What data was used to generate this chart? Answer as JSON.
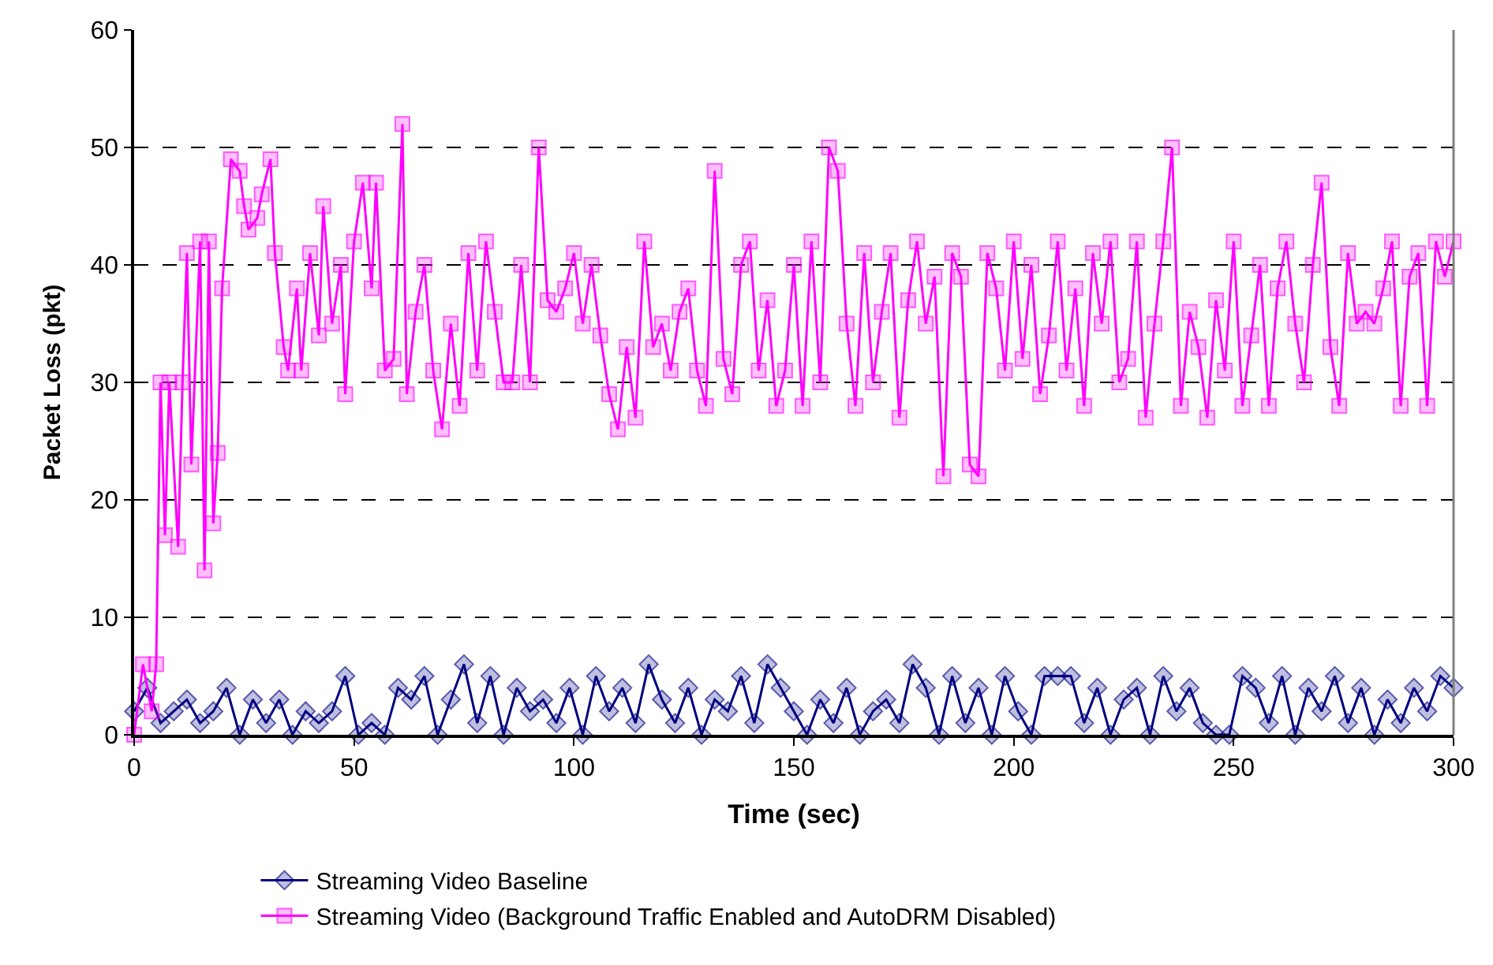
{
  "chart_data": {
    "type": "line",
    "xlabel": "Time (sec)",
    "ylabel": "Packet Loss (pkt)",
    "xlim": [
      0,
      300
    ],
    "xticks": [
      0,
      50,
      100,
      150,
      200,
      250,
      300
    ],
    "ylim": [
      0,
      60
    ],
    "yticks": [
      0,
      10,
      20,
      30,
      40,
      50,
      60
    ],
    "grid": "y",
    "legend": "bottom",
    "line_style": "solid",
    "series": [
      {
        "name": "Streaming Video Baseline",
        "color": "#000080",
        "marker": "diamond",
        "x": [
          0,
          3,
          6,
          9,
          12,
          15,
          18,
          21,
          24,
          27,
          30,
          33,
          36,
          39,
          42,
          45,
          48,
          51,
          54,
          57,
          60,
          63,
          66,
          69,
          72,
          75,
          78,
          81,
          84,
          87,
          90,
          93,
          96,
          99,
          102,
          105,
          108,
          111,
          114,
          117,
          120,
          123,
          126,
          129,
          132,
          135,
          138,
          141,
          144,
          147,
          150,
          153,
          156,
          159,
          162,
          165,
          168,
          171,
          174,
          177,
          180,
          183,
          186,
          189,
          192,
          195,
          198,
          201,
          204,
          207,
          210,
          213,
          216,
          219,
          222,
          225,
          228,
          231,
          234,
          237,
          240,
          243,
          246,
          249,
          252,
          255,
          258,
          261,
          264,
          267,
          270,
          273,
          276,
          279,
          282,
          285,
          288,
          291,
          294,
          297,
          300
        ],
        "values": [
          2,
          4,
          1,
          2,
          3,
          1,
          2,
          4,
          0,
          3,
          1,
          3,
          0,
          2,
          1,
          2,
          5,
          0,
          1,
          0,
          4,
          3,
          5,
          0,
          3,
          6,
          1,
          5,
          0,
          4,
          2,
          3,
          1,
          4,
          0,
          5,
          2,
          4,
          1,
          6,
          3,
          1,
          4,
          0,
          3,
          2,
          5,
          1,
          6,
          4,
          2,
          0,
          3,
          1,
          4,
          0,
          2,
          3,
          1,
          6,
          4,
          0,
          5,
          1,
          4,
          0,
          5,
          2,
          0,
          5,
          5,
          5,
          1,
          4,
          0,
          3,
          4,
          0,
          5,
          2,
          4,
          1,
          0,
          0,
          5,
          4,
          1,
          5,
          0,
          4,
          2,
          5,
          1,
          4,
          0,
          3,
          1,
          4,
          2,
          5,
          4
        ]
      },
      {
        "name": "Streaming Video (Background Traffic Enabled and AutoDRM Disabled)",
        "color": "#ff00ff",
        "marker": "square",
        "x": [
          0,
          2,
          4,
          5,
          6,
          7,
          8,
          10,
          11,
          12,
          13,
          15,
          16,
          17,
          18,
          19,
          20,
          22,
          24,
          25,
          26,
          28,
          29,
          31,
          32,
          34,
          35,
          37,
          38,
          40,
          42,
          43,
          45,
          47,
          48,
          50,
          52,
          54,
          55,
          57,
          59,
          61,
          62,
          64,
          66,
          68,
          70,
          72,
          74,
          76,
          78,
          80,
          82,
          84,
          86,
          88,
          90,
          92,
          94,
          96,
          98,
          100,
          102,
          104,
          106,
          108,
          110,
          112,
          114,
          116,
          118,
          120,
          122,
          124,
          126,
          128,
          130,
          132,
          134,
          136,
          138,
          140,
          142,
          144,
          146,
          148,
          150,
          152,
          154,
          156,
          158,
          160,
          162,
          164,
          166,
          168,
          170,
          172,
          174,
          176,
          178,
          180,
          182,
          184,
          186,
          188,
          190,
          192,
          194,
          196,
          198,
          200,
          202,
          204,
          206,
          208,
          210,
          212,
          214,
          216,
          218,
          220,
          222,
          224,
          226,
          228,
          230,
          232,
          234,
          236,
          238,
          240,
          242,
          244,
          246,
          248,
          250,
          252,
          254,
          256,
          258,
          260,
          262,
          264,
          266,
          268,
          270,
          272,
          274,
          276,
          278,
          280,
          282,
          284,
          286,
          288,
          290,
          292,
          294,
          296,
          298,
          300
        ],
        "values": [
          0,
          6,
          2,
          6,
          30,
          17,
          30,
          16,
          30,
          41,
          23,
          42,
          14,
          42,
          18,
          24,
          38,
          49,
          48,
          45,
          43,
          44,
          46,
          49,
          41,
          33,
          31,
          38,
          31,
          41,
          34,
          45,
          35,
          40,
          29,
          42,
          47,
          38,
          47,
          31,
          32,
          52,
          29,
          36,
          40,
          31,
          26,
          35,
          28,
          41,
          31,
          42,
          36,
          30,
          30,
          40,
          30,
          50,
          37,
          36,
          38,
          41,
          35,
          40,
          34,
          29,
          26,
          33,
          27,
          42,
          33,
          35,
          31,
          36,
          38,
          31,
          28,
          48,
          32,
          29,
          40,
          42,
          31,
          37,
          28,
          31,
          40,
          28,
          42,
          30,
          50,
          48,
          35,
          28,
          41,
          30,
          36,
          41,
          27,
          37,
          42,
          35,
          39,
          22,
          41,
          39,
          23,
          22,
          41,
          38,
          31,
          42,
          32,
          40,
          29,
          34,
          42,
          31,
          38,
          28,
          41,
          35,
          42,
          30,
          32,
          42,
          27,
          35,
          42,
          50,
          28,
          36,
          33,
          27,
          37,
          31,
          42,
          28,
          34,
          40,
          28,
          38,
          42,
          35,
          30,
          40,
          47,
          33,
          28,
          41,
          35,
          36,
          35,
          38,
          42,
          28,
          39,
          41,
          28,
          42,
          39,
          42
        ]
      }
    ]
  }
}
